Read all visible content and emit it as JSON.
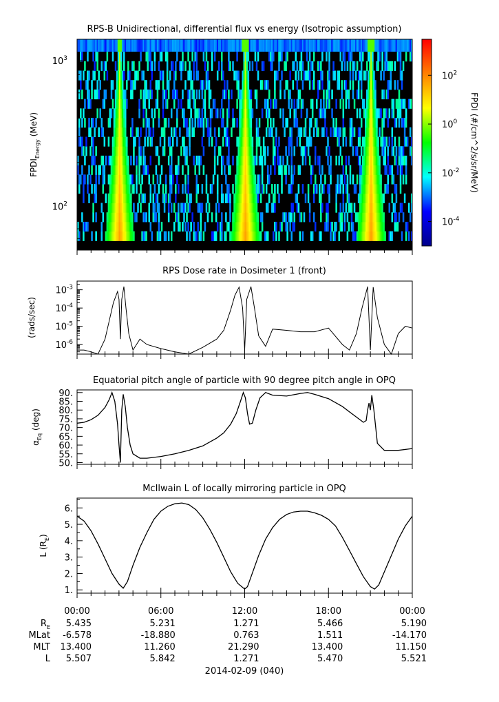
{
  "chart_data": [
    {
      "type": "heatmap",
      "title": "RPS-B  Unidirectional, differential flux vs energy (Isotropic assumption)",
      "ylabel_main": "FPDI",
      "ylabel_sub": "Energy",
      "ylabel_unit": " (MeV)",
      "y_scale": "log",
      "ylim": [
        50,
        1400
      ],
      "y_tick_base": "10",
      "y_tick_exps": [
        "3",
        "2"
      ],
      "y_tick_values": [
        1000,
        100
      ],
      "colorbar_label": "FPDI (#/cm^2/s/sr/MeV)",
      "colorbar_scale": "log",
      "colorbar_range": [
        1e-05,
        3000
      ],
      "colorbar_tick_values": [
        100,
        1,
        0.01,
        0.0001
      ],
      "colorbar_tick_exps": [
        "2",
        "0",
        "-2",
        "-4"
      ],
      "colorscale": [
        "#00008b",
        "#0000ff",
        "#00ffff",
        "#00ff00",
        "#ffff00",
        "#ff8000",
        "#ff0000"
      ],
      "features": [
        {
          "name": "belt passage",
          "center_hours": 3.0,
          "peak_flux": 50
        },
        {
          "name": "belt passage",
          "center_hours": 12.0,
          "peak_flux": 50
        },
        {
          "name": "belt passage",
          "center_hours": 21.0,
          "peak_flux": 50
        }
      ],
      "xlim_hours": [
        0,
        24
      ]
    },
    {
      "type": "line",
      "title": "RPS  Dose rate in Dosimeter 1 (front)",
      "ylabel": "(rads/sec)",
      "y_scale": "log",
      "ylim": [
        3e-07,
        0.003
      ],
      "y_tick_base": "10",
      "y_tick_exps": [
        "-3",
        "-4",
        "-5",
        "-6"
      ],
      "y_tick_values": [
        0.001,
        0.0001,
        1e-05,
        1e-06
      ],
      "x_hours": [
        0,
        0.5,
        1.0,
        1.5,
        2.0,
        2.3,
        2.6,
        2.9,
        3.0,
        3.1,
        3.2,
        3.35,
        3.5,
        3.7,
        4.0,
        4.5,
        5.0,
        6.0,
        7.0,
        8.0,
        9.0,
        10.0,
        10.5,
        11.0,
        11.3,
        11.6,
        11.85,
        12.0,
        12.15,
        12.45,
        12.7,
        13.0,
        13.5,
        14.0,
        15.0,
        16.0,
        17.0,
        18.0,
        19.0,
        19.5,
        20.0,
        20.4,
        20.8,
        21.0,
        21.2,
        21.5,
        22.0,
        22.5,
        23.0,
        23.5,
        24.0
      ],
      "values": [
        5e-07,
        5e-07,
        4e-07,
        3e-07,
        2e-06,
        2e-05,
        0.0002,
        0.0008,
        0.0003,
        2e-06,
        0.0003,
        0.0015,
        0.0001,
        4e-06,
        5e-07,
        2e-06,
        1e-06,
        6e-07,
        4e-07,
        3e-07,
        7e-07,
        2e-06,
        6e-06,
        8e-05,
        0.0005,
        0.0014,
        0.0001,
        5e-07,
        0.0003,
        0.0015,
        0.0001,
        3e-06,
        8e-07,
        7e-06,
        6e-06,
        5e-06,
        5e-06,
        8e-06,
        1e-06,
        5e-07,
        4e-06,
        0.0001,
        0.0015,
        5e-07,
        0.0014,
        3e-05,
        1e-06,
        3e-07,
        4e-06,
        1e-05,
        8e-06
      ],
      "xlim_hours": [
        0,
        24
      ]
    },
    {
      "type": "line",
      "title": "Equatorial pitch angle of particle with 90 degree pitch angle in OPQ",
      "ylabel_main": "α",
      "ylabel_sub": "Eq",
      "ylabel_unit": " (deg)",
      "ylim": [
        49,
        91.5
      ],
      "y_ticks": [
        "90.",
        "85.",
        "80.",
        "75.",
        "70.",
        "65.",
        "60.",
        "55.",
        "50."
      ],
      "y_tick_values": [
        90,
        85,
        80,
        75,
        70,
        65,
        60,
        55,
        50
      ],
      "x_hours": [
        0,
        0.5,
        1.0,
        1.5,
        2.0,
        2.3,
        2.5,
        2.7,
        2.9,
        3.0,
        3.1,
        3.2,
        3.3,
        3.45,
        3.6,
        3.8,
        4.0,
        4.5,
        5.0,
        6.0,
        7.0,
        8.0,
        9.0,
        10.0,
        10.5,
        11.0,
        11.4,
        11.7,
        11.9,
        12.05,
        12.2,
        12.35,
        12.55,
        12.8,
        13.1,
        13.5,
        14.0,
        15.0,
        16.0,
        16.5,
        17.0,
        18.0,
        19.0,
        20.0,
        20.5,
        20.7,
        20.8,
        20.9,
        21.0,
        21.1,
        21.25,
        21.5,
        22.0,
        23.0,
        24.0
      ],
      "values": [
        72.5,
        73,
        74.5,
        77,
        81.5,
        86,
        90,
        85,
        72,
        60,
        50,
        80,
        89,
        82,
        70,
        60,
        55,
        52.5,
        52.5,
        53.5,
        55,
        57,
        59.5,
        64,
        67,
        72,
        78,
        85,
        90,
        87,
        78,
        72,
        72.5,
        80,
        87,
        90,
        88.5,
        88,
        89.5,
        90,
        89,
        86.5,
        82,
        76,
        73,
        74,
        80,
        84,
        80,
        88.5,
        80,
        61,
        57,
        57,
        58
      ],
      "xlim_hours": [
        0,
        24
      ]
    },
    {
      "type": "line",
      "title": "McIlwain L of locally mirroring particle in OPQ",
      "ylabel_main": "L (R",
      "ylabel_sub": "E",
      "ylabel_unit": ")",
      "ylim": [
        0.8,
        6.6
      ],
      "y_ticks": [
        "6.",
        "5.",
        "4.",
        "3.",
        "2.",
        "1."
      ],
      "y_tick_values": [
        6,
        5,
        4,
        3,
        2,
        1
      ],
      "x_hours": [
        0,
        0.5,
        1.0,
        1.5,
        2.0,
        2.5,
        3.0,
        3.3,
        3.6,
        4.0,
        4.5,
        5.0,
        5.5,
        6.0,
        6.5,
        7.0,
        7.5,
        8.0,
        8.5,
        9.0,
        9.5,
        10.0,
        10.5,
        11.0,
        11.5,
        12.0,
        12.2,
        12.5,
        13.0,
        13.5,
        14.0,
        14.5,
        15.0,
        15.5,
        16.0,
        16.5,
        17.0,
        17.5,
        18.0,
        18.5,
        19.0,
        19.5,
        20.0,
        20.5,
        21.0,
        21.3,
        21.6,
        22.0,
        22.5,
        23.0,
        23.5,
        24.0
      ],
      "values": [
        5.5,
        5.2,
        4.6,
        3.8,
        2.9,
        2.0,
        1.35,
        1.1,
        1.5,
        2.5,
        3.6,
        4.5,
        5.3,
        5.8,
        6.1,
        6.25,
        6.3,
        6.2,
        5.9,
        5.4,
        4.7,
        3.9,
        3.0,
        2.1,
        1.4,
        1.05,
        1.2,
        1.9,
        3.1,
        4.1,
        4.8,
        5.3,
        5.6,
        5.75,
        5.8,
        5.8,
        5.7,
        5.55,
        5.3,
        4.9,
        4.2,
        3.4,
        2.6,
        1.8,
        1.2,
        1.05,
        1.3,
        2.1,
        3.1,
        4.1,
        4.9,
        5.5
      ],
      "xlim_hours": [
        0,
        24
      ]
    }
  ],
  "x_axis": {
    "tick_labels": [
      "00:00",
      "06:00",
      "12:00",
      "18:00",
      "00:00"
    ],
    "tick_hours": [
      0,
      6,
      12,
      18,
      24
    ],
    "rows": [
      {
        "label_main": "R",
        "label_sub": "E",
        "values": [
          "5.435",
          "5.231",
          "1.271",
          "5.466",
          "5.190"
        ]
      },
      {
        "label_main": "MLat",
        "label_sub": "",
        "values": [
          "-6.578",
          "-18.880",
          "0.763",
          "1.511",
          "-14.170"
        ]
      },
      {
        "label_main": "MLT",
        "label_sub": "",
        "values": [
          "13.400",
          "11.260",
          "21.290",
          "13.400",
          "11.150"
        ]
      },
      {
        "label_main": "L",
        "label_sub": "",
        "values": [
          "5.507",
          "5.842",
          "1.271",
          "5.470",
          "5.521"
        ]
      }
    ],
    "date_label": "2014-02-09 (040)"
  }
}
